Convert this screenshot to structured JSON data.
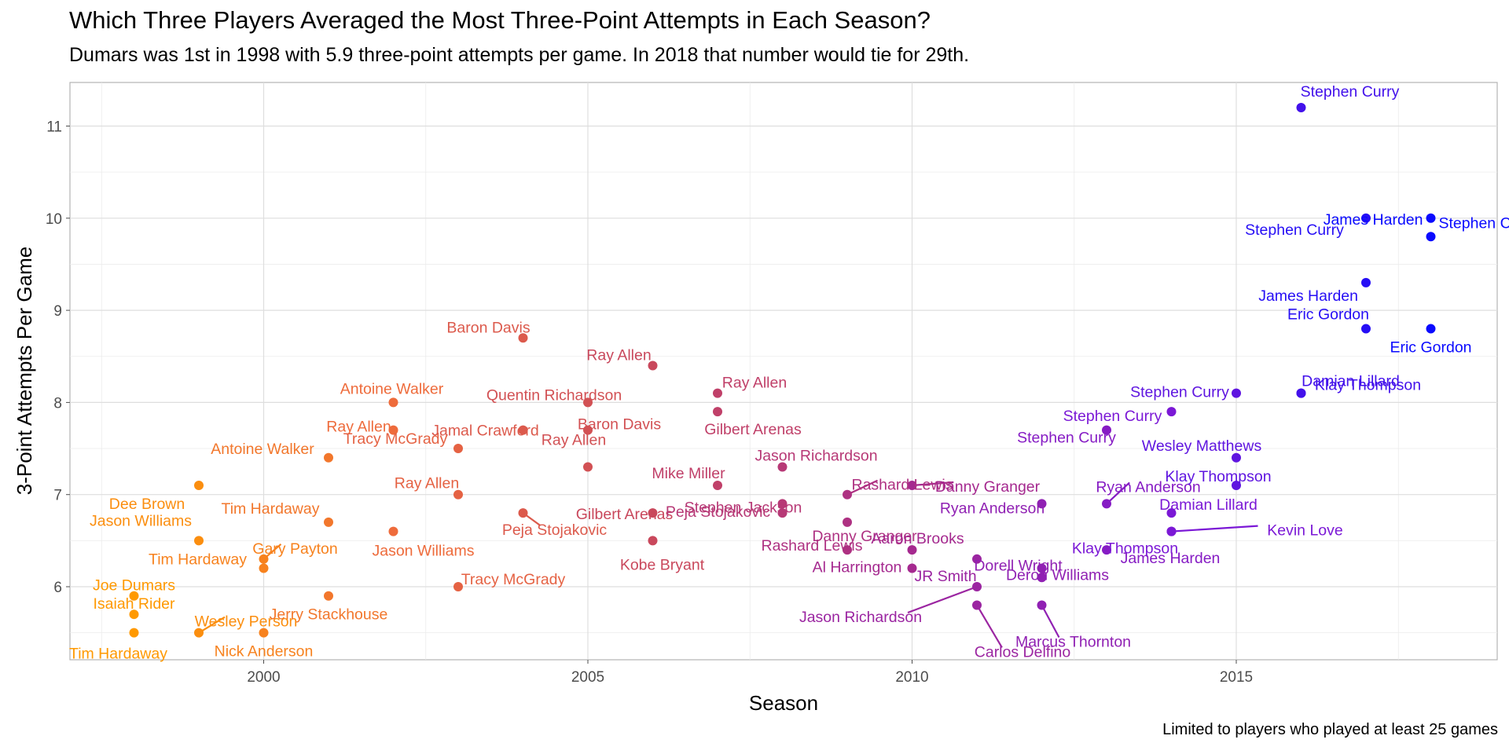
{
  "title": "Which Three Players Averaged the Most Three-Point Attempts in Each Season?",
  "subtitle": "Dumars was 1st in 1998 with 5.9 three-point attempts per game. In 2018 that number would tie for 29th.",
  "caption": "Limited to players who played at least 25 games",
  "chart_data": {
    "type": "scatter",
    "title": "Which Three Players Averaged the Most Three-Point Attempts in Each Season?",
    "subtitle": "Dumars was 1st in 1998 with 5.9 three-point attempts per game. In 2018 that number would tie for 29th.",
    "xlabel": "Season",
    "ylabel": "3-Point Attempts Per Game",
    "xlim": [
      1997,
      2019
    ],
    "ylim": [
      5.25,
      11.5
    ],
    "x_ticks": [
      2000,
      2005,
      2010,
      2015
    ],
    "y_ticks": [
      6,
      7,
      8,
      9,
      10,
      11
    ],
    "grid": true,
    "legend": "none",
    "color_scale": [
      "#ff9900",
      "#ee6b3b",
      "#c9485c",
      "#a5298f",
      "#7b18d6",
      "#0a0aff"
    ],
    "points": [
      {
        "season": 1998,
        "value": 5.9,
        "player": "Joe Dumars"
      },
      {
        "season": 1998,
        "value": 5.7,
        "player": "Isaiah Rider"
      },
      {
        "season": 1998,
        "value": 5.5,
        "player": "Tim Hardaway"
      },
      {
        "season": 1999,
        "value": 7.1,
        "player": "Dee Brown"
      },
      {
        "season": 1999,
        "value": 6.5,
        "player": "Jason Williams"
      },
      {
        "season": 1999,
        "value": 5.5,
        "player": "Wesley Person"
      },
      {
        "season": 2000,
        "value": 6.3,
        "player": "Gary Payton"
      },
      {
        "season": 2000,
        "value": 6.2,
        "player": "Tim Hardaway"
      },
      {
        "season": 2000,
        "value": 5.5,
        "player": "Nick Anderson"
      },
      {
        "season": 2001,
        "value": 7.4,
        "player": "Antoine Walker"
      },
      {
        "season": 2001,
        "value": 6.7,
        "player": "Tim Hardaway"
      },
      {
        "season": 2001,
        "value": 5.9,
        "player": "Jerry Stackhouse"
      },
      {
        "season": 2002,
        "value": 8.0,
        "player": "Antoine Walker"
      },
      {
        "season": 2002,
        "value": 7.7,
        "player": "Ray Allen"
      },
      {
        "season": 2002,
        "value": 6.6,
        "player": "Jason Williams"
      },
      {
        "season": 2003,
        "value": 7.5,
        "player": "Tracy McGrady"
      },
      {
        "season": 2003,
        "value": 7.0,
        "player": "Ray Allen"
      },
      {
        "season": 2003,
        "value": 6.0,
        "player": "Tracy McGrady"
      },
      {
        "season": 2004,
        "value": 8.7,
        "player": "Baron Davis"
      },
      {
        "season": 2004,
        "value": 7.7,
        "player": "Jamal Crawford"
      },
      {
        "season": 2004,
        "value": 6.8,
        "player": "Peja Stojakovic"
      },
      {
        "season": 2005,
        "value": 8.0,
        "player": "Quentin Richardson"
      },
      {
        "season": 2005,
        "value": 7.7,
        "player": "Baron Davis"
      },
      {
        "season": 2005,
        "value": 7.3,
        "player": "Ray Allen"
      },
      {
        "season": 2006,
        "value": 8.4,
        "player": "Ray Allen"
      },
      {
        "season": 2006,
        "value": 6.8,
        "player": "Gilbert Arenas"
      },
      {
        "season": 2006,
        "value": 6.5,
        "player": "Kobe Bryant"
      },
      {
        "season": 2007,
        "value": 8.1,
        "player": "Ray Allen"
      },
      {
        "season": 2007,
        "value": 7.9,
        "player": "Gilbert Arenas"
      },
      {
        "season": 2007,
        "value": 7.1,
        "player": "Mike Miller"
      },
      {
        "season": 2008,
        "value": 7.3,
        "player": "Jason Richardson"
      },
      {
        "season": 2008,
        "value": 6.9,
        "player": "Stephen Jackson"
      },
      {
        "season": 2008,
        "value": 6.8,
        "player": "Peja Stojakovic"
      },
      {
        "season": 2009,
        "value": 7.0,
        "player": "Rashard Lewis"
      },
      {
        "season": 2009,
        "value": 6.7,
        "player": "Danny Granger"
      },
      {
        "season": 2009,
        "value": 6.4,
        "player": "Rashard Lewis"
      },
      {
        "season": 2010,
        "value": 7.1,
        "player": "Danny Granger"
      },
      {
        "season": 2010,
        "value": 6.4,
        "player": "Aaron Brooks"
      },
      {
        "season": 2010,
        "value": 6.2,
        "player": "Al Harrington"
      },
      {
        "season": 2011,
        "value": 6.3,
        "player": "JR Smith"
      },
      {
        "season": 2011,
        "value": 6.0,
        "player": "Jason Richardson"
      },
      {
        "season": 2011,
        "value": 5.8,
        "player": "Carlos Delfino"
      },
      {
        "season": 2012,
        "value": 6.9,
        "player": "Ryan Anderson"
      },
      {
        "season": 2012,
        "value": 6.2,
        "player": "Dorell Wright"
      },
      {
        "season": 2012,
        "value": 6.1,
        "player": "Deron Williams"
      },
      {
        "season": 2012,
        "value": 5.8,
        "player": "Marcus Thornton"
      },
      {
        "season": 2013,
        "value": 7.7,
        "player": "Stephen Curry"
      },
      {
        "season": 2013,
        "value": 6.9,
        "player": "Ryan Anderson"
      },
      {
        "season": 2013,
        "value": 6.4,
        "player": "James Harden"
      },
      {
        "season": 2014,
        "value": 7.9,
        "player": "Stephen Curry"
      },
      {
        "season": 2014,
        "value": 6.8,
        "player": "Damian Lillard"
      },
      {
        "season": 2014,
        "value": 6.6,
        "player": "Klay Thompson"
      },
      {
        "season": 2014,
        "value": 6.6,
        "player": "Kevin Love"
      },
      {
        "season": 2015,
        "value": 8.1,
        "player": "Stephen Curry"
      },
      {
        "season": 2015,
        "value": 7.4,
        "player": "Wesley Matthews"
      },
      {
        "season": 2015,
        "value": 7.1,
        "player": "Klay Thompson"
      },
      {
        "season": 2016,
        "value": 11.2,
        "player": "Stephen Curry"
      },
      {
        "season": 2016,
        "value": 8.1,
        "player": "Klay Thompson"
      },
      {
        "season": 2016,
        "value": 8.1,
        "player": "Damian Lillard"
      },
      {
        "season": 2017,
        "value": 10.0,
        "player": "Stephen Curry"
      },
      {
        "season": 2017,
        "value": 9.3,
        "player": "James Harden"
      },
      {
        "season": 2017,
        "value": 8.8,
        "player": "Eric Gordon"
      },
      {
        "season": 2018,
        "value": 10.0,
        "player": "James Harden"
      },
      {
        "season": 2018,
        "value": 9.8,
        "player": "Stephen Curry"
      },
      {
        "season": 2018,
        "value": 8.8,
        "player": "Eric Gordon"
      }
    ]
  }
}
